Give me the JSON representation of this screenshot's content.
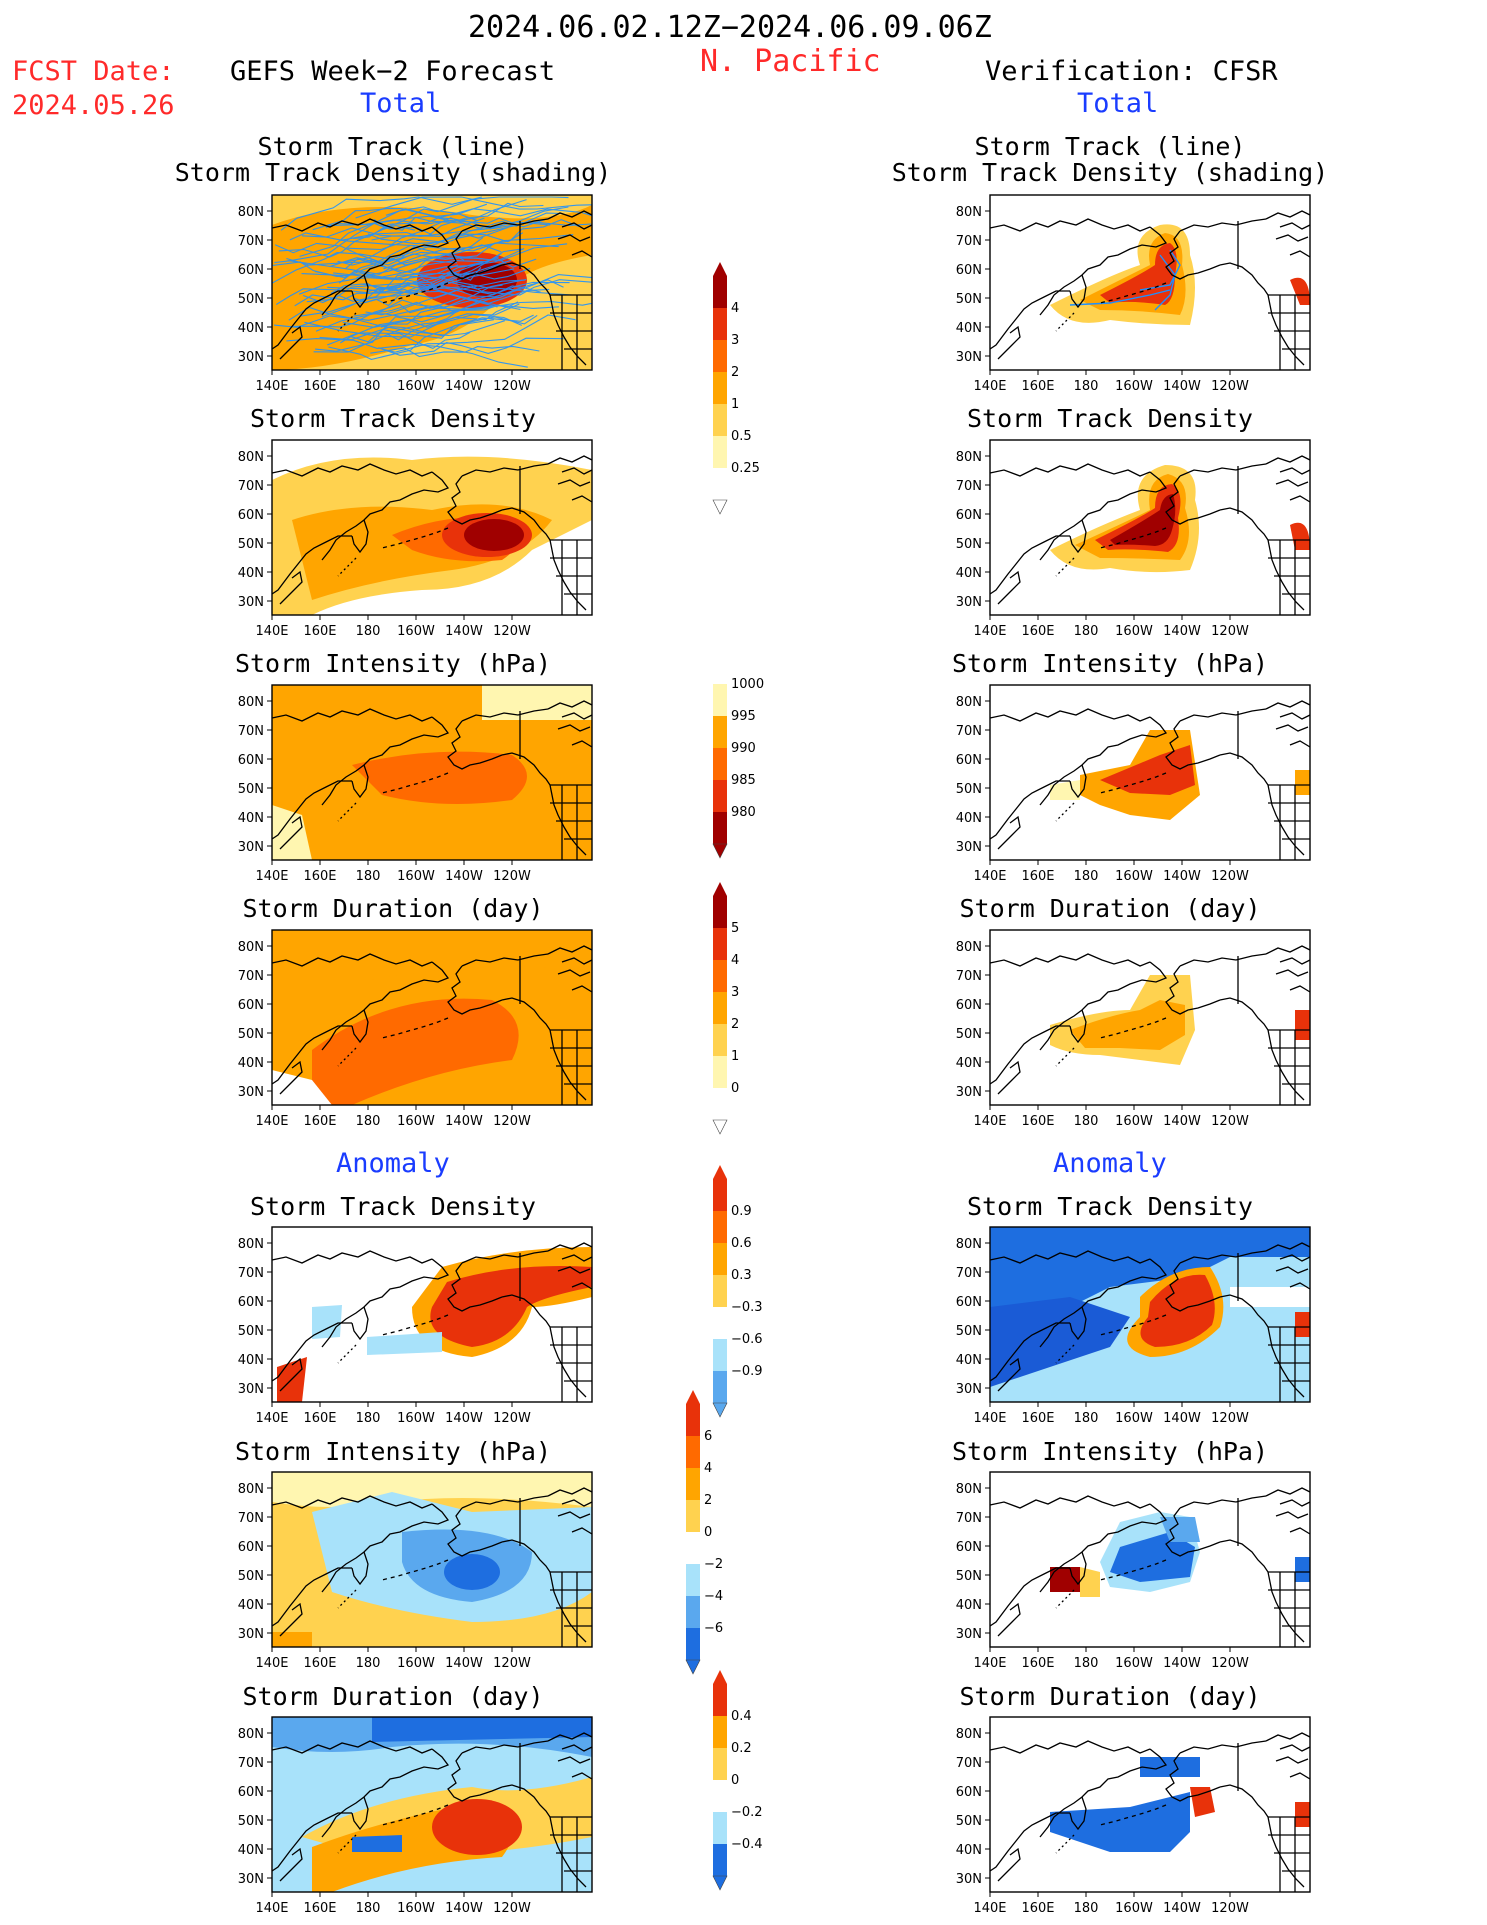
{
  "header": {
    "period": "2024.06.02.12Z−2024.06.09.06Z",
    "region": "N. Pacific",
    "fcst_label": "FCST Date:",
    "fcst_date": "2024.05.26",
    "left_title": "GEFS Week−2 Forecast",
    "right_title": "Verification: CFSR",
    "total_left": "Total",
    "total_right": "Total",
    "anomaly_left": "Anomaly",
    "anomaly_right": "Anomaly"
  },
  "panel_titles": {
    "track_line": "Storm Track (line)",
    "track_shading": "Storm Track Density (shading)",
    "density": "Storm Track Density",
    "intensity": "Storm Intensity (hPa)",
    "duration": "Storm Duration (day)"
  },
  "axes": {
    "lat_labels": [
      "80N",
      "70N",
      "60N",
      "50N",
      "40N",
      "30N"
    ],
    "lon_labels": [
      "140E",
      "160E",
      "180",
      "160W",
      "140W",
      "120W"
    ]
  },
  "colorbars": {
    "density_total": [
      "4",
      "3",
      "2",
      "1",
      "0.5",
      "0.25"
    ],
    "intensity_total": [
      "1000",
      "995",
      "990",
      "985",
      "980"
    ],
    "duration_total": [
      "5",
      "4",
      "3",
      "2",
      "1",
      "0"
    ],
    "density_anom": [
      "0.9",
      "0.6",
      "0.3",
      "−0.3",
      "−0.6",
      "−0.9"
    ],
    "intensity_anom": [
      "6",
      "4",
      "2",
      "0",
      "−2",
      "−4",
      "−6"
    ],
    "duration_anom": [
      "0.4",
      "0.2",
      "0",
      "−0.2",
      "−0.4"
    ]
  },
  "colors": {
    "header_red": "#ff2a2a",
    "header_blue": "#1a3cff",
    "track_line": "#1e90ff",
    "warm": [
      "#fff6b0",
      "#ffd24f",
      "#ffa500",
      "#ff6a00",
      "#e8320a",
      "#a00000"
    ],
    "cool": [
      "#e0f7ff",
      "#a8e2fa",
      "#5aa8ee",
      "#1e6ee0",
      "#1a5bd6"
    ]
  }
}
